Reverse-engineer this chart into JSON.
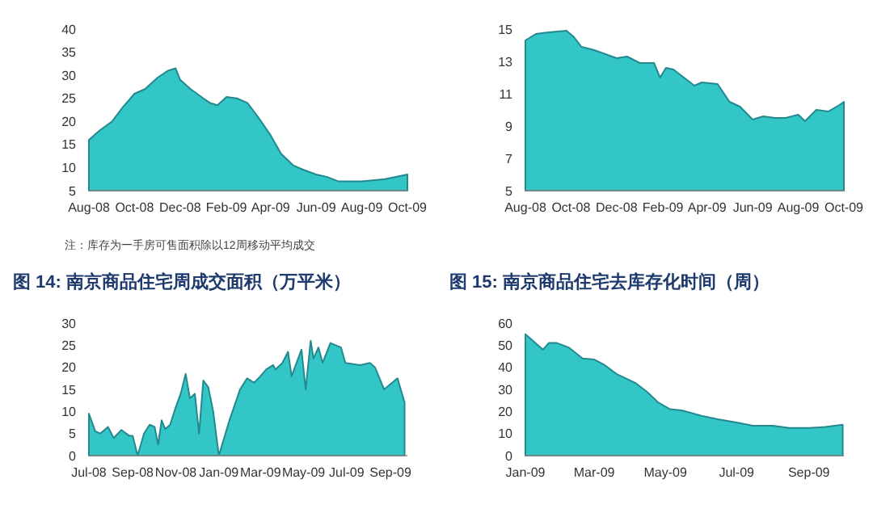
{
  "chart_data": [
    {
      "type": "area",
      "annotations": [
        "注：库存为一手房可售面积除以12周移动平均成交"
      ],
      "xlim": [
        "2008-08-01",
        "2009-10-01"
      ],
      "ylim": [
        5,
        40
      ],
      "yticks": [
        5,
        10,
        15,
        20,
        25,
        30,
        35,
        40
      ],
      "xticks": [
        {
          "value": "2008-08-01",
          "label": "Aug-08"
        },
        {
          "value": "2008-10-01",
          "label": "Oct-08"
        },
        {
          "value": "2008-12-01",
          "label": "Dec-08"
        },
        {
          "value": "2009-02-01",
          "label": "Feb-09"
        },
        {
          "value": "2009-04-01",
          "label": "Apr-09"
        },
        {
          "value": "2009-06-01",
          "label": "Jun-09"
        },
        {
          "value": "2009-08-01",
          "label": "Aug-09"
        },
        {
          "value": "2009-10-01",
          "label": "Oct-09"
        }
      ],
      "series": [
        {
          "color": "#33c6c6",
          "x": [
            "2008-08-01",
            "2008-08-15",
            "2008-09-01",
            "2008-09-15",
            "2008-10-01",
            "2008-10-15",
            "2008-11-01",
            "2008-11-15",
            "2008-11-25",
            "2008-12-01",
            "2008-12-15",
            "2009-01-01",
            "2009-01-10",
            "2009-01-20",
            "2009-02-01",
            "2009-02-15",
            "2009-03-01",
            "2009-03-15",
            "2009-04-01",
            "2009-04-15",
            "2009-05-01",
            "2009-05-15",
            "2009-06-01",
            "2009-06-15",
            "2009-07-01",
            "2009-08-01",
            "2009-09-01",
            "2009-10-01"
          ],
          "values": [
            16,
            18,
            20,
            23,
            26,
            27,
            29.5,
            31,
            31.5,
            29,
            27,
            25,
            24,
            23.5,
            25.3,
            25,
            24,
            21,
            17,
            13,
            10.5,
            9.5,
            8.5,
            8,
            7,
            7,
            7.5,
            8.5
          ]
        }
      ]
    },
    {
      "type": "area",
      "xlim": [
        "2008-08-01",
        "2009-10-01"
      ],
      "ylim": [
        5,
        15
      ],
      "yticks": [
        5,
        7,
        9,
        11,
        13,
        15
      ],
      "xticks": [
        {
          "value": "2008-08-01",
          "label": "Aug-08"
        },
        {
          "value": "2008-10-01",
          "label": "Oct-08"
        },
        {
          "value": "2008-12-01",
          "label": "Dec-08"
        },
        {
          "value": "2009-02-01",
          "label": "Feb-09"
        },
        {
          "value": "2009-04-01",
          "label": "Apr-09"
        },
        {
          "value": "2009-06-01",
          "label": "Jun-09"
        },
        {
          "value": "2009-08-01",
          "label": "Aug-09"
        },
        {
          "value": "2009-10-01",
          "label": "Oct-09"
        }
      ],
      "series": [
        {
          "color": "#33c6c6",
          "x": [
            "2008-08-01",
            "2008-08-15",
            "2008-09-01",
            "2008-09-25",
            "2008-10-05",
            "2008-10-15",
            "2008-11-01",
            "2008-12-01",
            "2008-12-15",
            "2009-01-01",
            "2009-01-20",
            "2009-01-28",
            "2009-02-05",
            "2009-02-15",
            "2009-03-01",
            "2009-03-15",
            "2009-03-25",
            "2009-04-15",
            "2009-05-01",
            "2009-05-15",
            "2009-06-01",
            "2009-06-15",
            "2009-07-01",
            "2009-07-15",
            "2009-08-01",
            "2009-08-10",
            "2009-08-25",
            "2009-09-10",
            "2009-09-25",
            "2009-10-01"
          ],
          "values": [
            14.3,
            14.7,
            14.8,
            14.9,
            14.5,
            13.9,
            13.7,
            13.2,
            13.3,
            12.9,
            12.9,
            12.0,
            12.6,
            12.5,
            12.0,
            11.5,
            11.7,
            11.6,
            10.5,
            10.2,
            9.4,
            9.6,
            9.5,
            9.5,
            9.7,
            9.3,
            10.0,
            9.9,
            10.3,
            10.5
          ]
        }
      ]
    },
    {
      "type": "area",
      "title": "图 14:  南京商品住宅周成交面积（万平米）",
      "xlim": [
        "2008-07-01",
        "2009-09-25"
      ],
      "ylim": [
        0,
        30
      ],
      "yticks": [
        0,
        5,
        10,
        15,
        20,
        25,
        30
      ],
      "xticks": [
        {
          "value": "2008-07-01",
          "label": "Jul-08"
        },
        {
          "value": "2008-09-01",
          "label": "Sep-08"
        },
        {
          "value": "2008-11-01",
          "label": "Nov-08"
        },
        {
          "value": "2009-01-01",
          "label": "Jan-09"
        },
        {
          "value": "2009-03-01",
          "label": "Mar-09"
        },
        {
          "value": "2009-05-01",
          "label": "May-09"
        },
        {
          "value": "2009-07-01",
          "label": "Jul-09"
        },
        {
          "value": "2009-09-01",
          "label": "Sep-09"
        }
      ],
      "series": [
        {
          "color": "#33c6c6",
          "x": [
            "2008-07-01",
            "2008-07-10",
            "2008-07-17",
            "2008-07-28",
            "2008-08-05",
            "2008-08-16",
            "2008-08-27",
            "2008-09-01",
            "2008-09-08",
            "2008-09-17",
            "2008-09-25",
            "2008-10-02",
            "2008-10-07",
            "2008-10-12",
            "2008-10-17",
            "2008-10-24",
            "2008-11-01",
            "2008-11-08",
            "2008-11-15",
            "2008-11-21",
            "2008-11-28",
            "2008-12-04",
            "2008-12-10",
            "2008-12-17",
            "2008-12-24",
            "2009-01-01",
            "2009-01-16",
            "2009-01-31",
            "2009-02-10",
            "2009-02-20",
            "2009-03-01",
            "2009-03-09",
            "2009-03-19",
            "2009-03-22",
            "2009-04-01",
            "2009-04-09",
            "2009-04-14",
            "2009-04-28",
            "2009-05-04",
            "2009-05-11",
            "2009-05-15",
            "2009-05-22",
            "2009-05-28",
            "2009-06-08",
            "2009-06-23",
            "2009-06-29",
            "2009-07-20",
            "2009-08-03",
            "2009-08-10",
            "2009-08-23",
            "2009-09-11",
            "2009-09-21"
          ],
          "values": [
            9.5,
            5.5,
            5,
            6.5,
            4,
            5.8,
            4.5,
            4.5,
            0,
            5,
            7,
            6.5,
            2.5,
            8,
            6,
            7,
            11,
            14,
            18.5,
            13,
            14,
            5,
            17,
            15.5,
            10,
            0,
            8,
            15,
            17.5,
            16.5,
            18,
            19.5,
            20.5,
            19.5,
            21,
            23.5,
            18,
            24,
            15,
            26,
            22,
            24.5,
            21,
            25.5,
            24.5,
            21,
            20.5,
            21,
            20,
            15,
            17.5,
            12
          ]
        }
      ]
    },
    {
      "type": "area",
      "title": "图 15:  南京商品住宅去库存化时间（周）",
      "xlim": [
        "2009-01-01",
        "2009-10-01"
      ],
      "ylim": [
        0,
        60
      ],
      "yticks": [
        0,
        10,
        20,
        30,
        40,
        50,
        60
      ],
      "xticks": [
        {
          "value": "2009-01-01",
          "label": "Jan-09"
        },
        {
          "value": "2009-03-01",
          "label": "Mar-09"
        },
        {
          "value": "2009-05-01",
          "label": "May-09"
        },
        {
          "value": "2009-07-01",
          "label": "Jul-09"
        },
        {
          "value": "2009-09-01",
          "label": "Sep-09"
        }
      ],
      "series": [
        {
          "color": "#33c6c6",
          "x": [
            "2009-01-01",
            "2009-01-16",
            "2009-01-21",
            "2009-01-28",
            "2009-02-07",
            "2009-02-19",
            "2009-03-01",
            "2009-03-10",
            "2009-03-20",
            "2009-04-05",
            "2009-04-15",
            "2009-04-25",
            "2009-05-05",
            "2009-05-15",
            "2009-06-01",
            "2009-06-15",
            "2009-07-01",
            "2009-07-15",
            "2009-08-01",
            "2009-08-15",
            "2009-09-01",
            "2009-09-15",
            "2009-09-30"
          ],
          "values": [
            55,
            48,
            51,
            51,
            49,
            44,
            43.5,
            41,
            37,
            33,
            29,
            24,
            21,
            20.5,
            18,
            16.5,
            15,
            13.5,
            13.5,
            12.5,
            12.5,
            13,
            14
          ]
        }
      ]
    }
  ]
}
